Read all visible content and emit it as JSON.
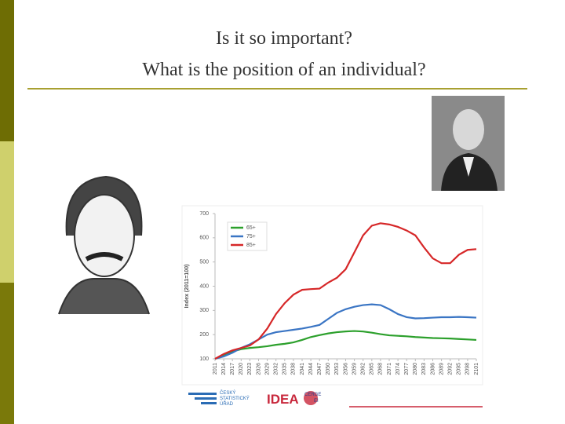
{
  "title": [
    "Is it so important?",
    "What is the position of an individual?"
  ],
  "logos": {
    "czso": [
      "ČESKÝ",
      "STATISTICKÝ",
      "ÚŘAD"
    ],
    "idea": "IDEA",
    "cerge": [
      "CERGE",
      "EI"
    ]
  },
  "chart_data": {
    "type": "line",
    "ylabel": "Index (2011=100)",
    "categories": [
      "2011",
      "2014",
      "2017",
      "2020",
      "2023",
      "2026",
      "2029",
      "2032",
      "2035",
      "2038",
      "2041",
      "2044",
      "2047",
      "2050",
      "2053",
      "2056",
      "2059",
      "2062",
      "2065",
      "2068",
      "2071",
      "2074",
      "2077",
      "2080",
      "2083",
      "2086",
      "2089",
      "2092",
      "2095",
      "2098",
      "2101"
    ],
    "series": [
      {
        "name": "65+",
        "color": "#2ca02c",
        "values": [
          100,
          115,
          130,
          140,
          145,
          148,
          152,
          158,
          162,
          168,
          178,
          190,
          198,
          205,
          210,
          213,
          215,
          213,
          208,
          202,
          197,
          195,
          193,
          190,
          188,
          186,
          185,
          184,
          182,
          180,
          178
        ]
      },
      {
        "name": "75+",
        "color": "#3a75c4",
        "values": [
          100,
          110,
          125,
          145,
          160,
          180,
          200,
          210,
          215,
          220,
          225,
          232,
          240,
          265,
          290,
          305,
          315,
          322,
          325,
          322,
          305,
          285,
          272,
          267,
          268,
          270,
          272,
          272,
          273,
          272,
          270
        ]
      },
      {
        "name": "85+",
        "color": "#d62728",
        "values": [
          100,
          120,
          135,
          145,
          155,
          180,
          225,
          285,
          330,
          365,
          385,
          388,
          390,
          415,
          435,
          470,
          540,
          610,
          650,
          660,
          655,
          645,
          630,
          610,
          560,
          515,
          495,
          495,
          530,
          550,
          553
        ]
      }
    ],
    "ylim": [
      100,
      700
    ],
    "yticks": [
      100,
      200,
      300,
      400,
      500,
      600,
      700
    ],
    "grid": false,
    "legend": "top-left"
  }
}
